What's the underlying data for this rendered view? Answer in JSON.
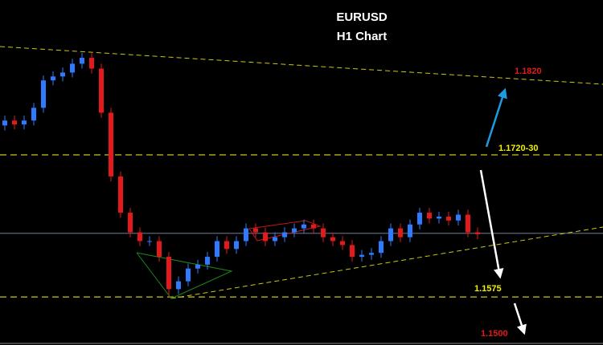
{
  "chart_data": {
    "type": "candlestick",
    "title": "EURUSD",
    "subtitle": "H1 Chart",
    "ylim": [
      1.1526,
      1.1878
    ],
    "up_color": "#2f7bff",
    "down_color": "#e3191c",
    "open": [
      1.175,
      1.1755,
      1.1751,
      1.1755,
      1.1768,
      1.1796,
      1.18,
      1.1804,
      1.1813,
      1.1819,
      1.1808,
      1.1763,
      1.1698,
      1.1661,
      1.1641,
      1.1632,
      1.1632,
      1.1616,
      1.1583,
      1.1591,
      1.1604,
      1.1608,
      1.1616,
      1.1632,
      1.1624,
      1.1632,
      1.1645,
      1.1641,
      1.1632,
      1.1636,
      1.1641,
      1.1645,
      1.1649,
      1.1645,
      1.1636,
      1.1632,
      1.1628,
      1.1616,
      1.1618,
      1.162,
      1.1632,
      1.1645,
      1.1636,
      1.1649,
      1.1661,
      1.1655,
      1.1657,
      1.1653,
      1.1659,
      1.1641
    ],
    "high": [
      1.176,
      1.176,
      1.176,
      1.1773,
      1.1801,
      1.1805,
      1.1809,
      1.1818,
      1.1824,
      1.1824,
      1.1813,
      1.1768,
      1.1703,
      1.1666,
      1.1646,
      1.1637,
      1.1637,
      1.1621,
      1.1596,
      1.1609,
      1.1613,
      1.1621,
      1.1637,
      1.1637,
      1.1637,
      1.165,
      1.165,
      1.1646,
      1.1641,
      1.1646,
      1.165,
      1.1654,
      1.1654,
      1.165,
      1.1641,
      1.1637,
      1.1633,
      1.1623,
      1.1625,
      1.1637,
      1.165,
      1.165,
      1.1654,
      1.1666,
      1.1666,
      1.1662,
      1.1662,
      1.1664,
      1.1664,
      1.1646
    ],
    "low": [
      1.1745,
      1.1746,
      1.1746,
      1.175,
      1.1763,
      1.1791,
      1.1795,
      1.1799,
      1.1808,
      1.1803,
      1.1758,
      1.1693,
      1.1656,
      1.1636,
      1.1627,
      1.1627,
      1.1611,
      1.1575,
      1.1578,
      1.1586,
      1.1599,
      1.1603,
      1.1611,
      1.1619,
      1.1619,
      1.1627,
      1.1636,
      1.1627,
      1.1627,
      1.1631,
      1.1636,
      1.164,
      1.164,
      1.1631,
      1.1627,
      1.1623,
      1.1611,
      1.1611,
      1.1613,
      1.1615,
      1.1627,
      1.1631,
      1.1631,
      1.1644,
      1.165,
      1.165,
      1.1648,
      1.1648,
      1.1636,
      1.1634
    ],
    "close": [
      1.1755,
      1.1751,
      1.1755,
      1.1768,
      1.1796,
      1.18,
      1.1804,
      1.1813,
      1.1819,
      1.1808,
      1.1763,
      1.1698,
      1.1661,
      1.1641,
      1.1632,
      1.1632,
      1.1616,
      1.1583,
      1.1591,
      1.1604,
      1.1608,
      1.1616,
      1.1632,
      1.1624,
      1.1632,
      1.1645,
      1.1641,
      1.1632,
      1.1636,
      1.1641,
      1.1645,
      1.1649,
      1.1645,
      1.1636,
      1.1632,
      1.1628,
      1.1616,
      1.1618,
      1.162,
      1.1632,
      1.1645,
      1.1636,
      1.1649,
      1.1661,
      1.1655,
      1.1657,
      1.1653,
      1.1659,
      1.1641,
      1.1639
    ],
    "levels": [
      {
        "value": 1.172,
        "color": "#c8c814"
      },
      {
        "value": 1.1575,
        "color": "#c8c814"
      },
      {
        "value": 1.164,
        "color": "#5a6478"
      }
    ],
    "annotations": [
      {
        "text": "1.1820",
        "color": "#e3191c"
      },
      {
        "text": "1.1720-30",
        "color": "#f0f000"
      },
      {
        "text": "1.1575",
        "color": "#f0f000"
      },
      {
        "text": "1.1500",
        "color": "#e3191c"
      }
    ]
  }
}
